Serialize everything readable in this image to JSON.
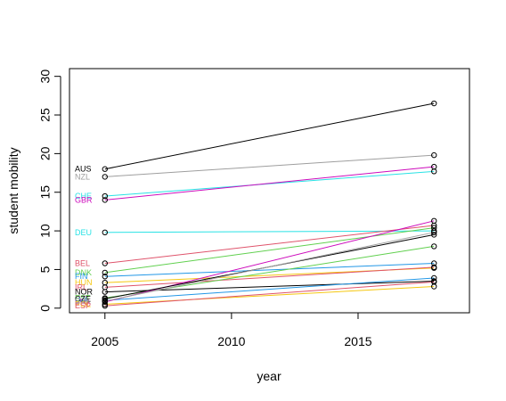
{
  "chart_data": {
    "type": "line",
    "title": "",
    "xlabel": "year",
    "ylabel": "student mobility",
    "xlim": [
      2003.6,
      2019.4
    ],
    "ylim": [
      -0.6,
      31.0
    ],
    "x_ticks": [
      2005,
      2010,
      2015
    ],
    "y_ticks": [
      0,
      5,
      10,
      15,
      20,
      25,
      30
    ],
    "x": [
      2005,
      2018
    ],
    "grid": false,
    "series": [
      {
        "name": "AUS",
        "color": "#000000",
        "values": [
          18.0,
          26.5
        ]
      },
      {
        "name": "NZL",
        "color": "#9e9e9e",
        "values": [
          17.0,
          19.8
        ]
      },
      {
        "name": "CHE",
        "color": "#28e2e5",
        "values": [
          14.5,
          17.7
        ]
      },
      {
        "name": "GBR",
        "color": "#cd0bbc",
        "values": [
          14.0,
          18.3
        ]
      },
      {
        "name": "DEU",
        "color": "#28e2e5",
        "values": [
          9.8,
          10.0
        ]
      },
      {
        "name": "BEL",
        "color": "#df536b",
        "values": [
          5.8,
          10.7
        ]
      },
      {
        "name": "DNK",
        "color": "#61d04f",
        "values": [
          4.6,
          10.4
        ]
      },
      {
        "name": "FIN",
        "color": "#2297e6",
        "values": [
          4.1,
          5.8
        ]
      },
      {
        "name": "HUN",
        "color": "#f5c710",
        "values": [
          3.3,
          5.2
        ]
      },
      {
        "name": "IRL",
        "color": "#df536b",
        "values": [
          2.7,
          5.3
        ]
      },
      {
        "name": "NOR",
        "color": "#000000",
        "values": [
          2.1,
          3.5
        ]
      },
      {
        "name": "EST",
        "color": "#61d04f",
        "values": [
          1.3,
          8.0
        ]
      },
      {
        "name": "LVA",
        "color": "#2297e6",
        "values": [
          1.0,
          3.9
        ]
      },
      {
        "name": "LTU",
        "color": "#cd0bbc",
        "values": [
          0.8,
          11.3
        ]
      },
      {
        "name": "CZE",
        "color": "#000000",
        "values": [
          1.2,
          9.5
        ]
      },
      {
        "name": "POL",
        "color": "#f5c710",
        "values": [
          0.5,
          2.8
        ]
      },
      {
        "name": "SVK",
        "color": "#9e9e9e",
        "values": [
          0.9,
          9.8
        ]
      },
      {
        "name": "ESP",
        "color": "#df536b",
        "values": [
          0.3,
          3.4
        ]
      }
    ]
  }
}
